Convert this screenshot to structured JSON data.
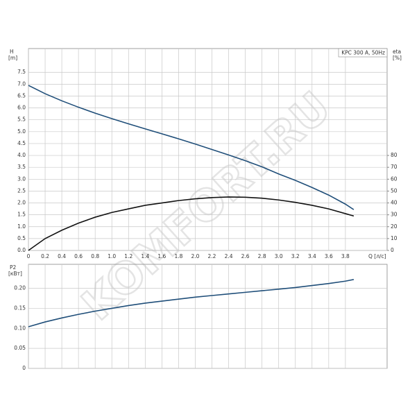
{
  "watermark": "KOMFORT.RU",
  "chart_data": [
    {
      "type": "line",
      "ylabel": "H",
      "yunit": "[m]",
      "y2label": "eta",
      "y2unit": "[%]",
      "xlabel": "Q [л/с]",
      "annotation": "KPC 300 A, 50Hz",
      "x": [
        0,
        0.2,
        0.4,
        0.6,
        0.8,
        1.0,
        1.2,
        1.4,
        1.6,
        1.8,
        2.0,
        2.2,
        2.4,
        2.6,
        2.8,
        3.0,
        3.2,
        3.4,
        3.6,
        3.8,
        3.9
      ],
      "series": [
        {
          "color": "#1f4e79",
          "values": [
            6.95,
            6.6,
            6.3,
            6.03,
            5.78,
            5.55,
            5.33,
            5.12,
            4.91,
            4.7,
            4.48,
            4.25,
            4.02,
            3.78,
            3.52,
            3.22,
            2.95,
            2.65,
            2.33,
            1.95,
            1.72
          ]
        },
        {
          "color": "#111111",
          "axis": "y2",
          "values": [
            0,
            10,
            17,
            23,
            28,
            32,
            35,
            38,
            40,
            42,
            43.5,
            44.5,
            45,
            44.8,
            44,
            42.5,
            40.5,
            38,
            35,
            31,
            29
          ]
        }
      ],
      "xlim": [
        0,
        4.3
      ],
      "xticks": [
        0,
        0.2,
        0.4,
        0.6,
        0.8,
        {
          "value": 1,
          "label": "1.0"
        },
        1.2,
        1.4,
        1.6,
        1.8,
        {
          "value": 2,
          "label": "2.0"
        },
        2.2,
        2.4,
        2.6,
        2.8,
        {
          "value": 3,
          "label": "3.0"
        },
        3.2,
        3.4,
        3.6,
        3.8
      ],
      "ylim": [
        0,
        8.5
      ],
      "yticks": [
        {
          "value": 0,
          "label": "0.0"
        },
        0.5,
        {
          "value": 1,
          "label": "1.0"
        },
        1.5,
        {
          "value": 2,
          "label": "2.0"
        },
        2.5,
        {
          "value": 3,
          "label": "3.0"
        },
        3.5,
        {
          "value": 4,
          "label": "4.0"
        },
        4.5,
        {
          "value": 5,
          "label": "5.0"
        },
        5.5,
        {
          "value": 6,
          "label": "6.0"
        },
        6.5,
        {
          "value": 7,
          "label": "7.0"
        },
        7.5
      ],
      "y2lim": [
        0,
        170
      ],
      "y2ticks": [
        0,
        10,
        20,
        30,
        40,
        50,
        60,
        70,
        80
      ],
      "grid": true
    },
    {
      "type": "line",
      "ylabel": "P2",
      "yunit": "[кВт]",
      "x": [
        0,
        0.2,
        0.4,
        0.6,
        0.8,
        1.0,
        1.2,
        1.4,
        1.6,
        1.8,
        2.0,
        2.2,
        2.4,
        2.6,
        2.8,
        3.0,
        3.2,
        3.4,
        3.6,
        3.8,
        3.9
      ],
      "series": [
        {
          "color": "#1f4e79",
          "values": [
            0.104,
            0.116,
            0.126,
            0.135,
            0.143,
            0.15,
            0.157,
            0.163,
            0.168,
            0.173,
            0.178,
            0.182,
            0.186,
            0.19,
            0.194,
            0.198,
            0.202,
            0.207,
            0.212,
            0.218,
            0.222
          ]
        }
      ],
      "xlim": [
        0,
        4.3
      ],
      "xgrid": [
        0,
        0.2,
        0.4,
        0.6,
        0.8,
        1.0,
        1.2,
        1.4,
        1.6,
        1.8,
        2.0,
        2.2,
        2.4,
        2.6,
        2.8,
        3.0,
        3.2,
        3.4,
        3.6,
        3.8
      ],
      "ylim": [
        0,
        0.26
      ],
      "yticks": [
        0,
        0.05,
        {
          "value": 0.1,
          "label": "0.10"
        },
        0.15,
        {
          "value": 0.2,
          "label": "0.20"
        }
      ],
      "grid": true
    }
  ]
}
